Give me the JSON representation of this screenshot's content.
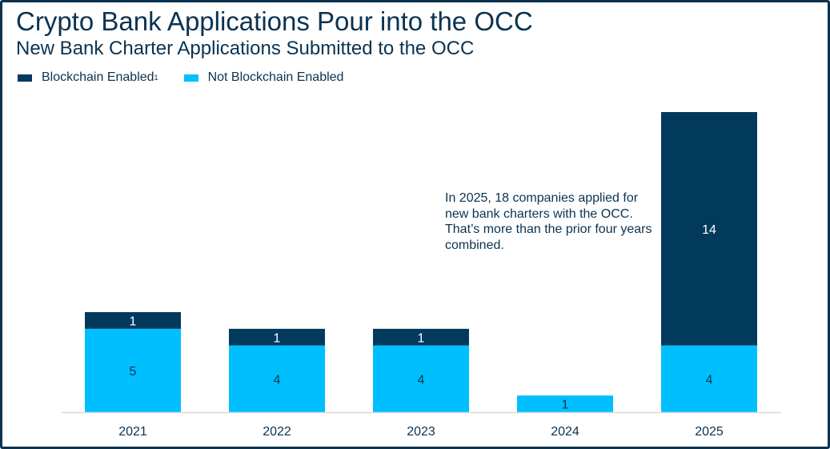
{
  "chart_data": {
    "type": "bar",
    "stacked": true,
    "title": "Crypto Bank Applications Pour into the OCC",
    "subtitle": "New Bank Charter Applications Submitted to the OCC",
    "categories": [
      "2021",
      "2022",
      "2023",
      "2024",
      "2025"
    ],
    "series": [
      {
        "name": "Not Blockchain Enabled",
        "color": "#00bfff",
        "values": [
          5,
          4,
          4,
          1,
          4
        ]
      },
      {
        "name": "Blockchain Enabled",
        "name_superscript": "1",
        "color": "#023a5e",
        "values": [
          1,
          1,
          1,
          0,
          14
        ]
      }
    ],
    "ylim": [
      0,
      18
    ],
    "grid": false,
    "legend": "top-left",
    "annotation": "In 2025, 18 companies applied for new bank charters with the OCC. That’s more than the prior four years combined."
  }
}
